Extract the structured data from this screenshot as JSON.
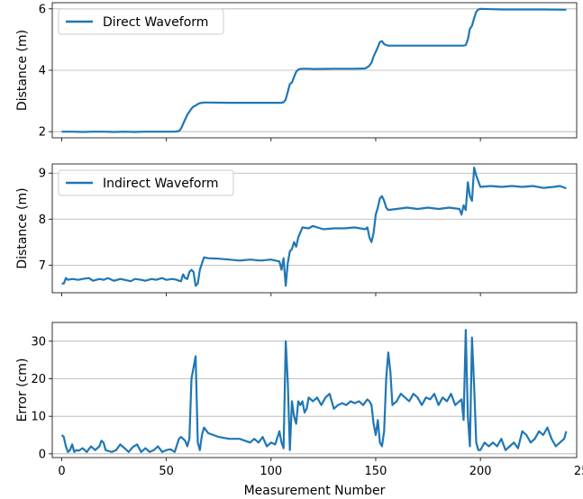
{
  "chart_data": [
    {
      "type": "line",
      "ylabel": "Distance (m)",
      "xlim": [
        -4.5,
        246
      ],
      "ylim": [
        1.8,
        6.2
      ],
      "yticks": [
        2,
        4,
        6
      ],
      "xticks": [
        0,
        50,
        100,
        150,
        200,
        250
      ],
      "show_xticklabels": false,
      "grid": "y",
      "legend_position": "top-left",
      "series": [
        {
          "name": "Direct Waveform",
          "color": "#1f77b4",
          "x": [
            0,
            5,
            10,
            15,
            20,
            25,
            30,
            35,
            40,
            45,
            50,
            54,
            56,
            57,
            58,
            59,
            60,
            61,
            62,
            63,
            64,
            65,
            66,
            68,
            70,
            80,
            90,
            100,
            105,
            106,
            107,
            108,
            109,
            110,
            111,
            112,
            113,
            114,
            115,
            118,
            120,
            130,
            140,
            145,
            146,
            147,
            148,
            149,
            150,
            151,
            152,
            153,
            154,
            155,
            156,
            160,
            170,
            180,
            190,
            192,
            193,
            194,
            195,
            196,
            197,
            198,
            199,
            200,
            205,
            210,
            220,
            230,
            241
          ],
          "values": [
            2.0,
            2.0,
            1.99,
            2.0,
            2.0,
            1.99,
            2.0,
            1.99,
            2.0,
            2.0,
            2.0,
            2.0,
            2.02,
            2.1,
            2.25,
            2.4,
            2.55,
            2.65,
            2.75,
            2.82,
            2.85,
            2.9,
            2.93,
            2.95,
            2.95,
            2.94,
            2.94,
            2.94,
            2.94,
            2.96,
            3.05,
            3.3,
            3.55,
            3.6,
            3.78,
            3.95,
            4.02,
            4.04,
            4.05,
            4.05,
            4.04,
            4.05,
            4.05,
            4.06,
            4.1,
            4.15,
            4.25,
            4.45,
            4.6,
            4.75,
            4.92,
            4.95,
            4.85,
            4.82,
            4.8,
            4.8,
            4.8,
            4.8,
            4.8,
            4.8,
            4.82,
            5.0,
            5.35,
            5.45,
            5.7,
            5.9,
            5.98,
            6.0,
            5.99,
            5.98,
            5.98,
            5.98,
            5.97
          ]
        }
      ]
    },
    {
      "type": "line",
      "ylabel": "Distance (m)",
      "xlim": [
        -4.5,
        246
      ],
      "ylim": [
        6.4,
        9.2
      ],
      "yticks": [
        7,
        8,
        9
      ],
      "xticks": [
        0,
        50,
        100,
        150,
        200,
        250
      ],
      "show_xticklabels": false,
      "grid": "y",
      "legend_position": "top-left",
      "series": [
        {
          "name": "Indirect Waveform",
          "color": "#1f77b4",
          "x": [
            0,
            1,
            2,
            3,
            5,
            8,
            10,
            13,
            15,
            18,
            20,
            22,
            25,
            28,
            30,
            33,
            35,
            38,
            40,
            43,
            45,
            48,
            50,
            53,
            55,
            56,
            57,
            58,
            59,
            60,
            61,
            62,
            63,
            64,
            65,
            66,
            68,
            70,
            75,
            80,
            85,
            90,
            95,
            100,
            104,
            105,
            106,
            107,
            108,
            109,
            110,
            111,
            112,
            113,
            115,
            118,
            120,
            125,
            130,
            135,
            140,
            145,
            146,
            147,
            148,
            149,
            150,
            151,
            152,
            153,
            154,
            155,
            156,
            160,
            165,
            170,
            175,
            180,
            185,
            190,
            191,
            192,
            193,
            194,
            195,
            196,
            197,
            198,
            200,
            205,
            210,
            215,
            220,
            225,
            230,
            235,
            238,
            241
          ],
          "values": [
            6.6,
            6.6,
            6.72,
            6.68,
            6.7,
            6.68,
            6.7,
            6.72,
            6.66,
            6.7,
            6.68,
            6.72,
            6.66,
            6.7,
            6.68,
            6.65,
            6.7,
            6.68,
            6.66,
            6.7,
            6.68,
            6.72,
            6.68,
            6.7,
            6.68,
            6.66,
            6.65,
            6.8,
            6.72,
            6.7,
            6.85,
            6.9,
            6.85,
            6.55,
            6.6,
            6.9,
            7.17,
            7.15,
            7.14,
            7.12,
            7.1,
            7.12,
            7.1,
            7.12,
            7.08,
            6.9,
            7.15,
            6.55,
            7.05,
            7.3,
            7.35,
            7.5,
            7.4,
            7.6,
            7.82,
            7.8,
            7.85,
            7.78,
            7.8,
            7.8,
            7.82,
            7.78,
            7.82,
            7.6,
            7.5,
            7.7,
            8.1,
            8.25,
            8.45,
            8.5,
            8.4,
            8.25,
            8.2,
            8.22,
            8.25,
            8.22,
            8.25,
            8.22,
            8.25,
            8.22,
            8.1,
            8.3,
            8.2,
            8.8,
            8.5,
            8.4,
            9.12,
            8.95,
            8.7,
            8.72,
            8.7,
            8.72,
            8.7,
            8.72,
            8.68,
            8.7,
            8.72,
            8.67
          ]
        }
      ]
    },
    {
      "type": "line",
      "xlabel": "Measurement Number",
      "ylabel": "Error (cm)",
      "xlim": [
        -4.5,
        246
      ],
      "ylim": [
        -1,
        35
      ],
      "yticks": [
        0,
        10,
        20,
        30
      ],
      "xticks": [
        0,
        50,
        100,
        150,
        200,
        250
      ],
      "show_xticklabels": true,
      "grid": "y",
      "series": [
        {
          "color": "#1f77b4",
          "x": [
            0,
            1,
            2,
            3,
            4,
            5,
            6,
            7,
            8,
            10,
            12,
            14,
            16,
            18,
            19,
            20,
            21,
            22,
            24,
            26,
            28,
            30,
            32,
            34,
            36,
            38,
            40,
            42,
            44,
            46,
            48,
            50,
            52,
            54,
            56,
            57,
            58,
            59,
            60,
            61,
            62,
            63,
            64,
            65,
            66,
            67,
            68,
            70,
            75,
            80,
            85,
            90,
            92,
            94,
            96,
            98,
            100,
            102,
            104,
            105,
            106,
            107,
            108,
            109,
            110,
            111,
            112,
            113,
            114,
            115,
            116,
            117,
            118,
            120,
            122,
            124,
            126,
            128,
            130,
            132,
            134,
            136,
            138,
            140,
            142,
            144,
            146,
            147,
            148,
            149,
            150,
            151,
            152,
            153,
            154,
            155,
            156,
            157,
            158,
            160,
            162,
            164,
            166,
            168,
            170,
            172,
            174,
            176,
            178,
            180,
            182,
            184,
            186,
            188,
            190,
            191,
            192,
            193,
            194,
            195,
            196,
            197,
            198,
            199,
            200,
            202,
            204,
            206,
            208,
            210,
            212,
            214,
            216,
            218,
            220,
            222,
            224,
            226,
            228,
            230,
            232,
            234,
            236,
            238,
            240,
            241
          ],
          "values": [
            5,
            4.5,
            2,
            0.5,
            1,
            2.5,
            0.5,
            1,
            0.8,
            1.5,
            0.5,
            2,
            1,
            2,
            3.5,
            3,
            1,
            0.8,
            0.5,
            1,
            2.5,
            1.5,
            0.5,
            1.8,
            2.5,
            0.5,
            1.5,
            0.5,
            1,
            2,
            0.5,
            1,
            1.2,
            0.5,
            4,
            4.5,
            4,
            3.5,
            2,
            4,
            20,
            23,
            26,
            3,
            1,
            5,
            7,
            5.5,
            4.5,
            4,
            4,
            3,
            4,
            3,
            4.5,
            2,
            3,
            2.5,
            6,
            3,
            1.5,
            30,
            19,
            1,
            14,
            10,
            8,
            14,
            13,
            14,
            11,
            12,
            15,
            14,
            15,
            13,
            15,
            16,
            12,
            13,
            13.5,
            13,
            14,
            13.5,
            14,
            13,
            14.5,
            14,
            13,
            8,
            5,
            9,
            3,
            2,
            6,
            20,
            27,
            22,
            13,
            14,
            16,
            15,
            14,
            16,
            15,
            13,
            15,
            14.5,
            16,
            13,
            15,
            14,
            16,
            13,
            14,
            14.5,
            9,
            33,
            10,
            2,
            31,
            18,
            3,
            1,
            1,
            3,
            2,
            3,
            2,
            4,
            1,
            2,
            3,
            1.5,
            6,
            5,
            3,
            4,
            6,
            5,
            7,
            4,
            2,
            3,
            4,
            6
          ]
        }
      ]
    }
  ]
}
